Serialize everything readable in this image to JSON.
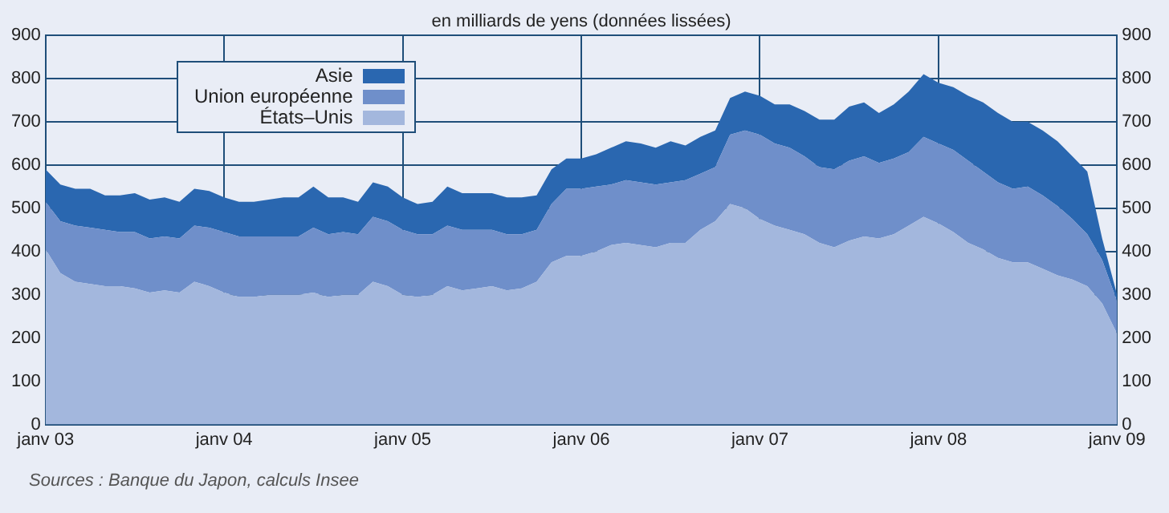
{
  "chart_data": {
    "type": "area",
    "title": "en milliards de yens (données lissées)",
    "annotations": [
      "Sources : Banque du Japon, calculs Insee"
    ],
    "x": [
      "2003-01",
      "2003-02",
      "2003-03",
      "2003-04",
      "2003-05",
      "2003-06",
      "2003-07",
      "2003-08",
      "2003-09",
      "2003-10",
      "2003-11",
      "2003-12",
      "2004-01",
      "2004-02",
      "2004-03",
      "2004-04",
      "2004-05",
      "2004-06",
      "2004-07",
      "2004-08",
      "2004-09",
      "2004-10",
      "2004-11",
      "2004-12",
      "2005-01",
      "2005-02",
      "2005-03",
      "2005-04",
      "2005-05",
      "2005-06",
      "2005-07",
      "2005-08",
      "2005-09",
      "2005-10",
      "2005-11",
      "2005-12",
      "2006-01",
      "2006-02",
      "2006-03",
      "2006-04",
      "2006-05",
      "2006-06",
      "2006-07",
      "2006-08",
      "2006-09",
      "2006-10",
      "2006-11",
      "2006-12",
      "2007-01",
      "2007-02",
      "2007-03",
      "2007-04",
      "2007-05",
      "2007-06",
      "2007-07",
      "2007-08",
      "2007-09",
      "2007-10",
      "2007-11",
      "2007-12",
      "2008-01",
      "2008-02",
      "2008-03",
      "2008-04",
      "2008-05",
      "2008-06",
      "2008-07",
      "2008-08",
      "2008-09",
      "2008-10",
      "2008-11",
      "2008-12",
      "2009-01"
    ],
    "stacked": true,
    "series": [
      {
        "name": "États–Unis",
        "color": "#a3b7dd",
        "values": [
          405,
          350,
          330,
          325,
          320,
          320,
          315,
          305,
          310,
          305,
          330,
          320,
          305,
          295,
          295,
          300,
          300,
          300,
          305,
          295,
          300,
          300,
          330,
          320,
          300,
          295,
          300,
          320,
          310,
          315,
          320,
          310,
          315,
          330,
          375,
          390,
          390,
          400,
          415,
          420,
          415,
          410,
          420,
          420,
          450,
          470,
          510,
          500,
          475,
          460,
          450,
          440,
          420,
          410,
          425,
          435,
          430,
          440,
          460,
          480,
          465,
          445,
          420,
          405,
          385,
          375,
          375,
          360,
          345,
          335,
          320,
          280,
          210
        ]
      },
      {
        "name": "Union européenne",
        "color": "#6f8fca",
        "values": [
          110,
          120,
          130,
          130,
          130,
          125,
          130,
          125,
          125,
          125,
          130,
          135,
          140,
          140,
          140,
          135,
          135,
          135,
          150,
          145,
          145,
          140,
          150,
          150,
          150,
          145,
          140,
          140,
          140,
          135,
          130,
          130,
          125,
          120,
          135,
          155,
          155,
          150,
          140,
          145,
          145,
          145,
          140,
          145,
          130,
          125,
          160,
          180,
          195,
          190,
          190,
          180,
          175,
          180,
          185,
          185,
          175,
          175,
          170,
          185,
          185,
          190,
          190,
          180,
          175,
          170,
          175,
          170,
          160,
          140,
          120,
          100,
          75
        ]
      },
      {
        "name": "Asie",
        "color": "#2a67b0",
        "values": [
          75,
          85,
          85,
          90,
          80,
          85,
          90,
          90,
          90,
          85,
          85,
          85,
          80,
          80,
          80,
          85,
          90,
          90,
          95,
          85,
          80,
          75,
          80,
          80,
          75,
          70,
          75,
          90,
          85,
          85,
          85,
          85,
          85,
          80,
          80,
          70,
          70,
          75,
          85,
          90,
          90,
          85,
          95,
          80,
          85,
          85,
          85,
          90,
          90,
          90,
          100,
          105,
          110,
          115,
          125,
          125,
          115,
          125,
          140,
          145,
          140,
          145,
          150,
          160,
          160,
          155,
          150,
          150,
          150,
          145,
          145,
          50,
          15
        ]
      }
    ],
    "xlim": [
      "2003-01",
      "2009-01"
    ],
    "xticks": [
      {
        "value": "2003-01",
        "label": "janv 03"
      },
      {
        "value": "2004-01",
        "label": "janv 04"
      },
      {
        "value": "2005-01",
        "label": "janv 05"
      },
      {
        "value": "2006-01",
        "label": "janv 06"
      },
      {
        "value": "2007-01",
        "label": "janv 07"
      },
      {
        "value": "2008-01",
        "label": "janv 08"
      },
      {
        "value": "2009-01",
        "label": "janv 09"
      }
    ],
    "ylim": [
      0,
      900
    ],
    "yticks": [
      0,
      100,
      200,
      300,
      400,
      500,
      600,
      700,
      800,
      900
    ],
    "y2lim": [
      0,
      900
    ],
    "y2ticks": [
      0,
      100,
      200,
      300,
      400,
      500,
      600,
      700,
      800,
      900
    ],
    "grid": true,
    "legend": "top left"
  }
}
